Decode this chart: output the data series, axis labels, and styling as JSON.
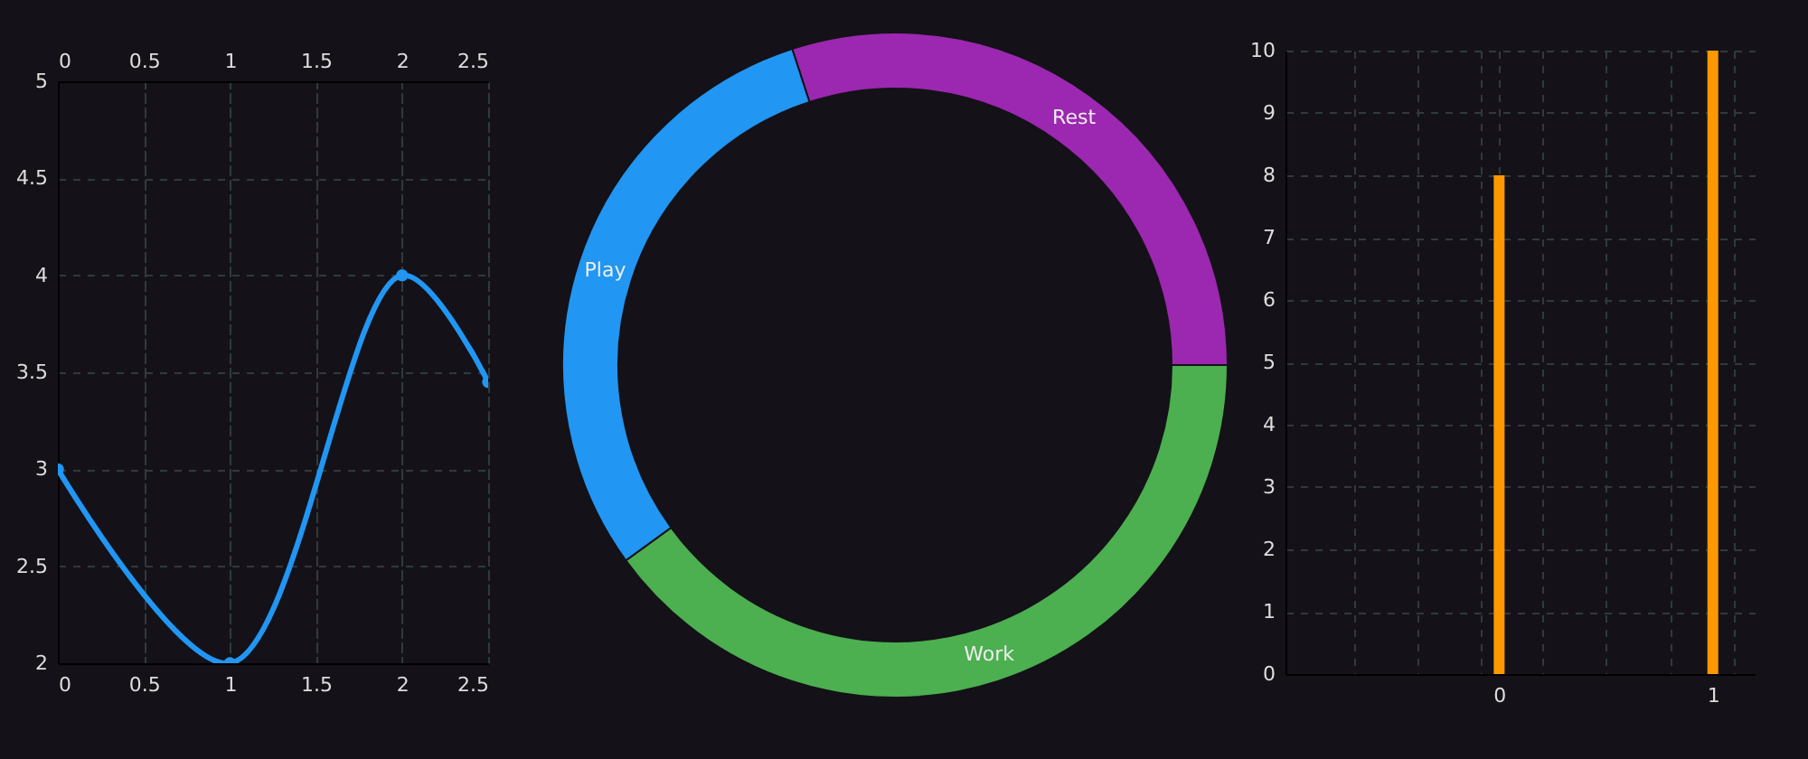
{
  "chart_data": [
    {
      "type": "line",
      "x": [
        0,
        1,
        2,
        2.5
      ],
      "series": [
        {
          "color": "#2196f3",
          "values": [
            3,
            2,
            4,
            3.45
          ]
        }
      ],
      "marker": "circle",
      "xlim": [
        0,
        2.5
      ],
      "xticks": [
        0,
        0.5,
        1,
        1.5,
        2,
        2.5
      ],
      "x2lim": [
        0,
        2.5
      ],
      "x2ticks": [
        0,
        0.5,
        1,
        1.5,
        2,
        2.5
      ],
      "ylim": [
        2,
        5
      ],
      "yticks": [
        2,
        2.5,
        3,
        3.5,
        4,
        4.5,
        5
      ],
      "grid": true
    },
    {
      "type": "donut",
      "categories": [
        "Rest",
        "Work",
        "Play"
      ],
      "values": [
        30,
        40,
        30
      ],
      "colors": [
        "#9c27b0",
        "#4caf50",
        "#2196f3"
      ]
    },
    {
      "type": "bar",
      "x": [
        0,
        1
      ],
      "series": [
        {
          "color": "#ff9800",
          "values": [
            8,
            10
          ]
        }
      ],
      "xlim": [
        -1,
        1.2
      ],
      "xticks": [
        {
          "value": -0.68,
          "label": null
        },
        {
          "value": -0.38,
          "label": null
        },
        {
          "value": -0.09,
          "label": null
        },
        0,
        {
          "value": 0.2,
          "label": null
        },
        {
          "value": 0.5,
          "label": null
        },
        {
          "value": 0.8,
          "label": null
        },
        1,
        {
          "value": 1.1,
          "label": null
        }
      ],
      "ylim": [
        0,
        10
      ],
      "yticks": [
        0,
        1,
        2,
        3,
        4,
        5,
        6,
        7,
        8,
        9,
        10
      ],
      "grid": true
    }
  ]
}
